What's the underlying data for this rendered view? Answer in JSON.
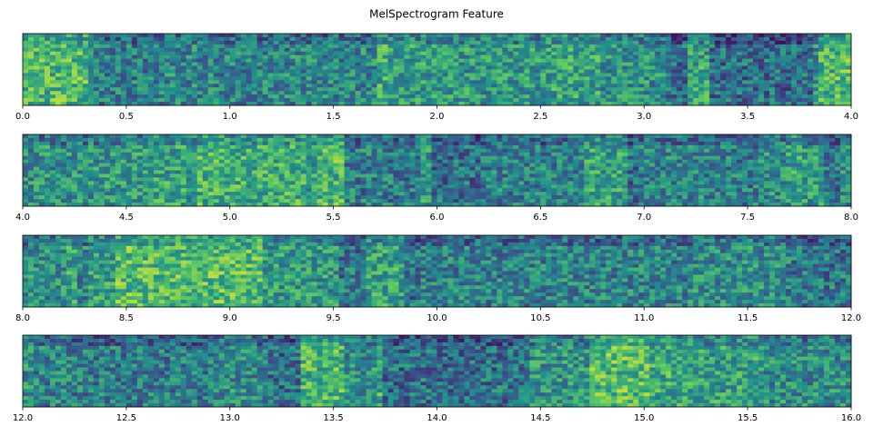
{
  "chart_data": [
    {
      "type": "spectrogram",
      "title": "MelSpectrogram Feature",
      "xlim": [
        0,
        4
      ],
      "xticks": [
        {
          "value": 0,
          "label": "0.0"
        },
        0.5,
        {
          "value": 1,
          "label": "1.0"
        },
        1.5,
        {
          "value": 2,
          "label": "2.0"
        },
        2.5,
        {
          "value": 3,
          "label": "3.0"
        },
        3.5,
        {
          "value": 4,
          "label": "4.0"
        }
      ]
    },
    {
      "type": "spectrogram",
      "xlim": [
        4,
        8
      ],
      "xticks": [
        {
          "value": 4,
          "label": "4.0"
        },
        4.5,
        {
          "value": 5,
          "label": "5.0"
        },
        5.5,
        {
          "value": 6,
          "label": "6.0"
        },
        6.5,
        {
          "value": 7,
          "label": "7.0"
        },
        7.5,
        {
          "value": 8,
          "label": "8.0"
        }
      ]
    },
    {
      "type": "spectrogram",
      "xlim": [
        8,
        12
      ],
      "xticks": [
        {
          "value": 8,
          "label": "8.0"
        },
        8.5,
        {
          "value": 9,
          "label": "9.0"
        },
        9.5,
        {
          "value": 10,
          "label": "10.0"
        },
        10.5,
        {
          "value": 11,
          "label": "11.0"
        },
        11.5,
        {
          "value": 12,
          "label": "12.0"
        }
      ]
    },
    {
      "type": "spectrogram",
      "xlim": [
        12,
        16
      ],
      "xticks": [
        {
          "value": 12,
          "label": "12.0"
        },
        12.5,
        {
          "value": 13,
          "label": "13.0"
        },
        13.5,
        {
          "value": 14,
          "label": "14.0"
        },
        14.5,
        {
          "value": 15,
          "label": "15.0"
        },
        15.5,
        {
          "value": 16,
          "label": "16.0"
        }
      ]
    }
  ]
}
